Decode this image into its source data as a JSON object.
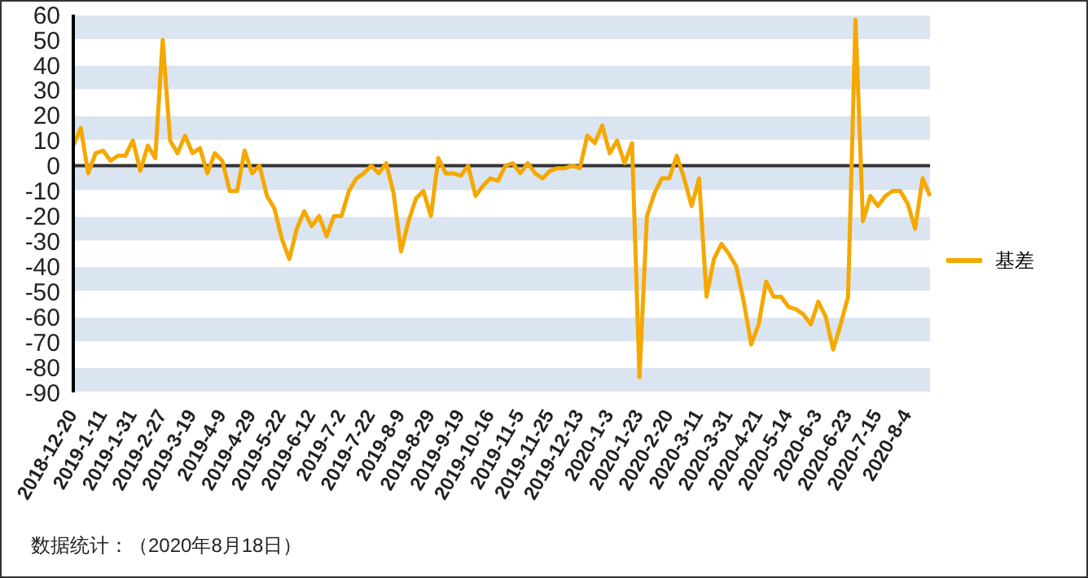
{
  "chart_data": {
    "type": "line",
    "categories": [
      "2018-12-20",
      null,
      null,
      null,
      "2019-1-11",
      null,
      null,
      null,
      "2019-1-31",
      null,
      null,
      null,
      "2019-2-27",
      null,
      null,
      null,
      "2019-3-19",
      null,
      null,
      null,
      "2019-4-9",
      null,
      null,
      null,
      "2019-4-29",
      null,
      null,
      null,
      "2019-5-22",
      null,
      null,
      null,
      "2019-6-12",
      null,
      null,
      null,
      "2019-7-2",
      null,
      null,
      null,
      "2019-7-22",
      null,
      null,
      null,
      "2019-8-9",
      null,
      null,
      null,
      "2019-8-29",
      null,
      null,
      null,
      "2019-9-19",
      null,
      null,
      null,
      "2019-10-16",
      null,
      null,
      null,
      "2019-11-5",
      null,
      null,
      null,
      "2019-11-25",
      null,
      null,
      null,
      "2019-12-13",
      null,
      null,
      null,
      "2020-1-3",
      null,
      null,
      null,
      "2020-1-23",
      null,
      null,
      null,
      "2020-2-20",
      null,
      null,
      null,
      "2020-3-11",
      null,
      null,
      null,
      "2020-3-31",
      null,
      null,
      null,
      "2020-4-21",
      null,
      null,
      null,
      "2020-5-14",
      null,
      null,
      null,
      "2020-6-3",
      null,
      null,
      null,
      "2020-6-23",
      null,
      null,
      null,
      "2020-7-15",
      null,
      null,
      null,
      "2020-8-4",
      null,
      null,
      null
    ],
    "series": [
      {
        "name": "基差",
        "color": "#f5a800",
        "values": [
          8,
          15,
          -3,
          5,
          6,
          2,
          4,
          4,
          10,
          -2,
          8,
          3,
          50,
          10,
          5,
          12,
          5,
          7,
          -3,
          5,
          2,
          -10,
          -10,
          6,
          -3,
          0,
          -12,
          -17,
          -29,
          -37,
          -25,
          -18,
          -24,
          -20,
          -28,
          -20,
          -20,
          -10,
          -5,
          -3,
          0,
          -3,
          1,
          -11,
          -34,
          -22,
          -13,
          -10,
          -20,
          3,
          -3,
          -3,
          -4,
          0,
          -12,
          -8,
          -5,
          -6,
          0,
          1,
          -3,
          1,
          -3,
          -5,
          -2,
          -1,
          -1,
          0,
          -1,
          12,
          9,
          16,
          5,
          10,
          1,
          9,
          -84,
          -20,
          -11,
          -5,
          -5,
          4,
          -5,
          -16,
          -5,
          -52,
          -37,
          -31,
          -35,
          -40,
          -54,
          -71,
          -63,
          -46,
          -52,
          -52,
          -56,
          -57,
          -59,
          -63,
          -54,
          -60,
          -73,
          -63,
          -52,
          58,
          -22,
          -12,
          -16,
          -12,
          -10,
          -10,
          -15,
          -25,
          -5,
          -12
        ]
      }
    ],
    "ylim": [
      -90,
      60
    ],
    "yticks": [
      -90,
      -80,
      -70,
      -60,
      -50,
      -40,
      -30,
      -20,
      -10,
      0,
      10,
      20,
      30,
      40,
      50,
      60
    ],
    "grid": "y",
    "legend": "right",
    "marker": "none",
    "line_style": "solid",
    "ref_lines": [
      {
        "axis": "y",
        "value": 0,
        "color": "#333333"
      }
    ],
    "annotations": [
      "数据统计：（2020年8月18日）"
    ]
  }
}
